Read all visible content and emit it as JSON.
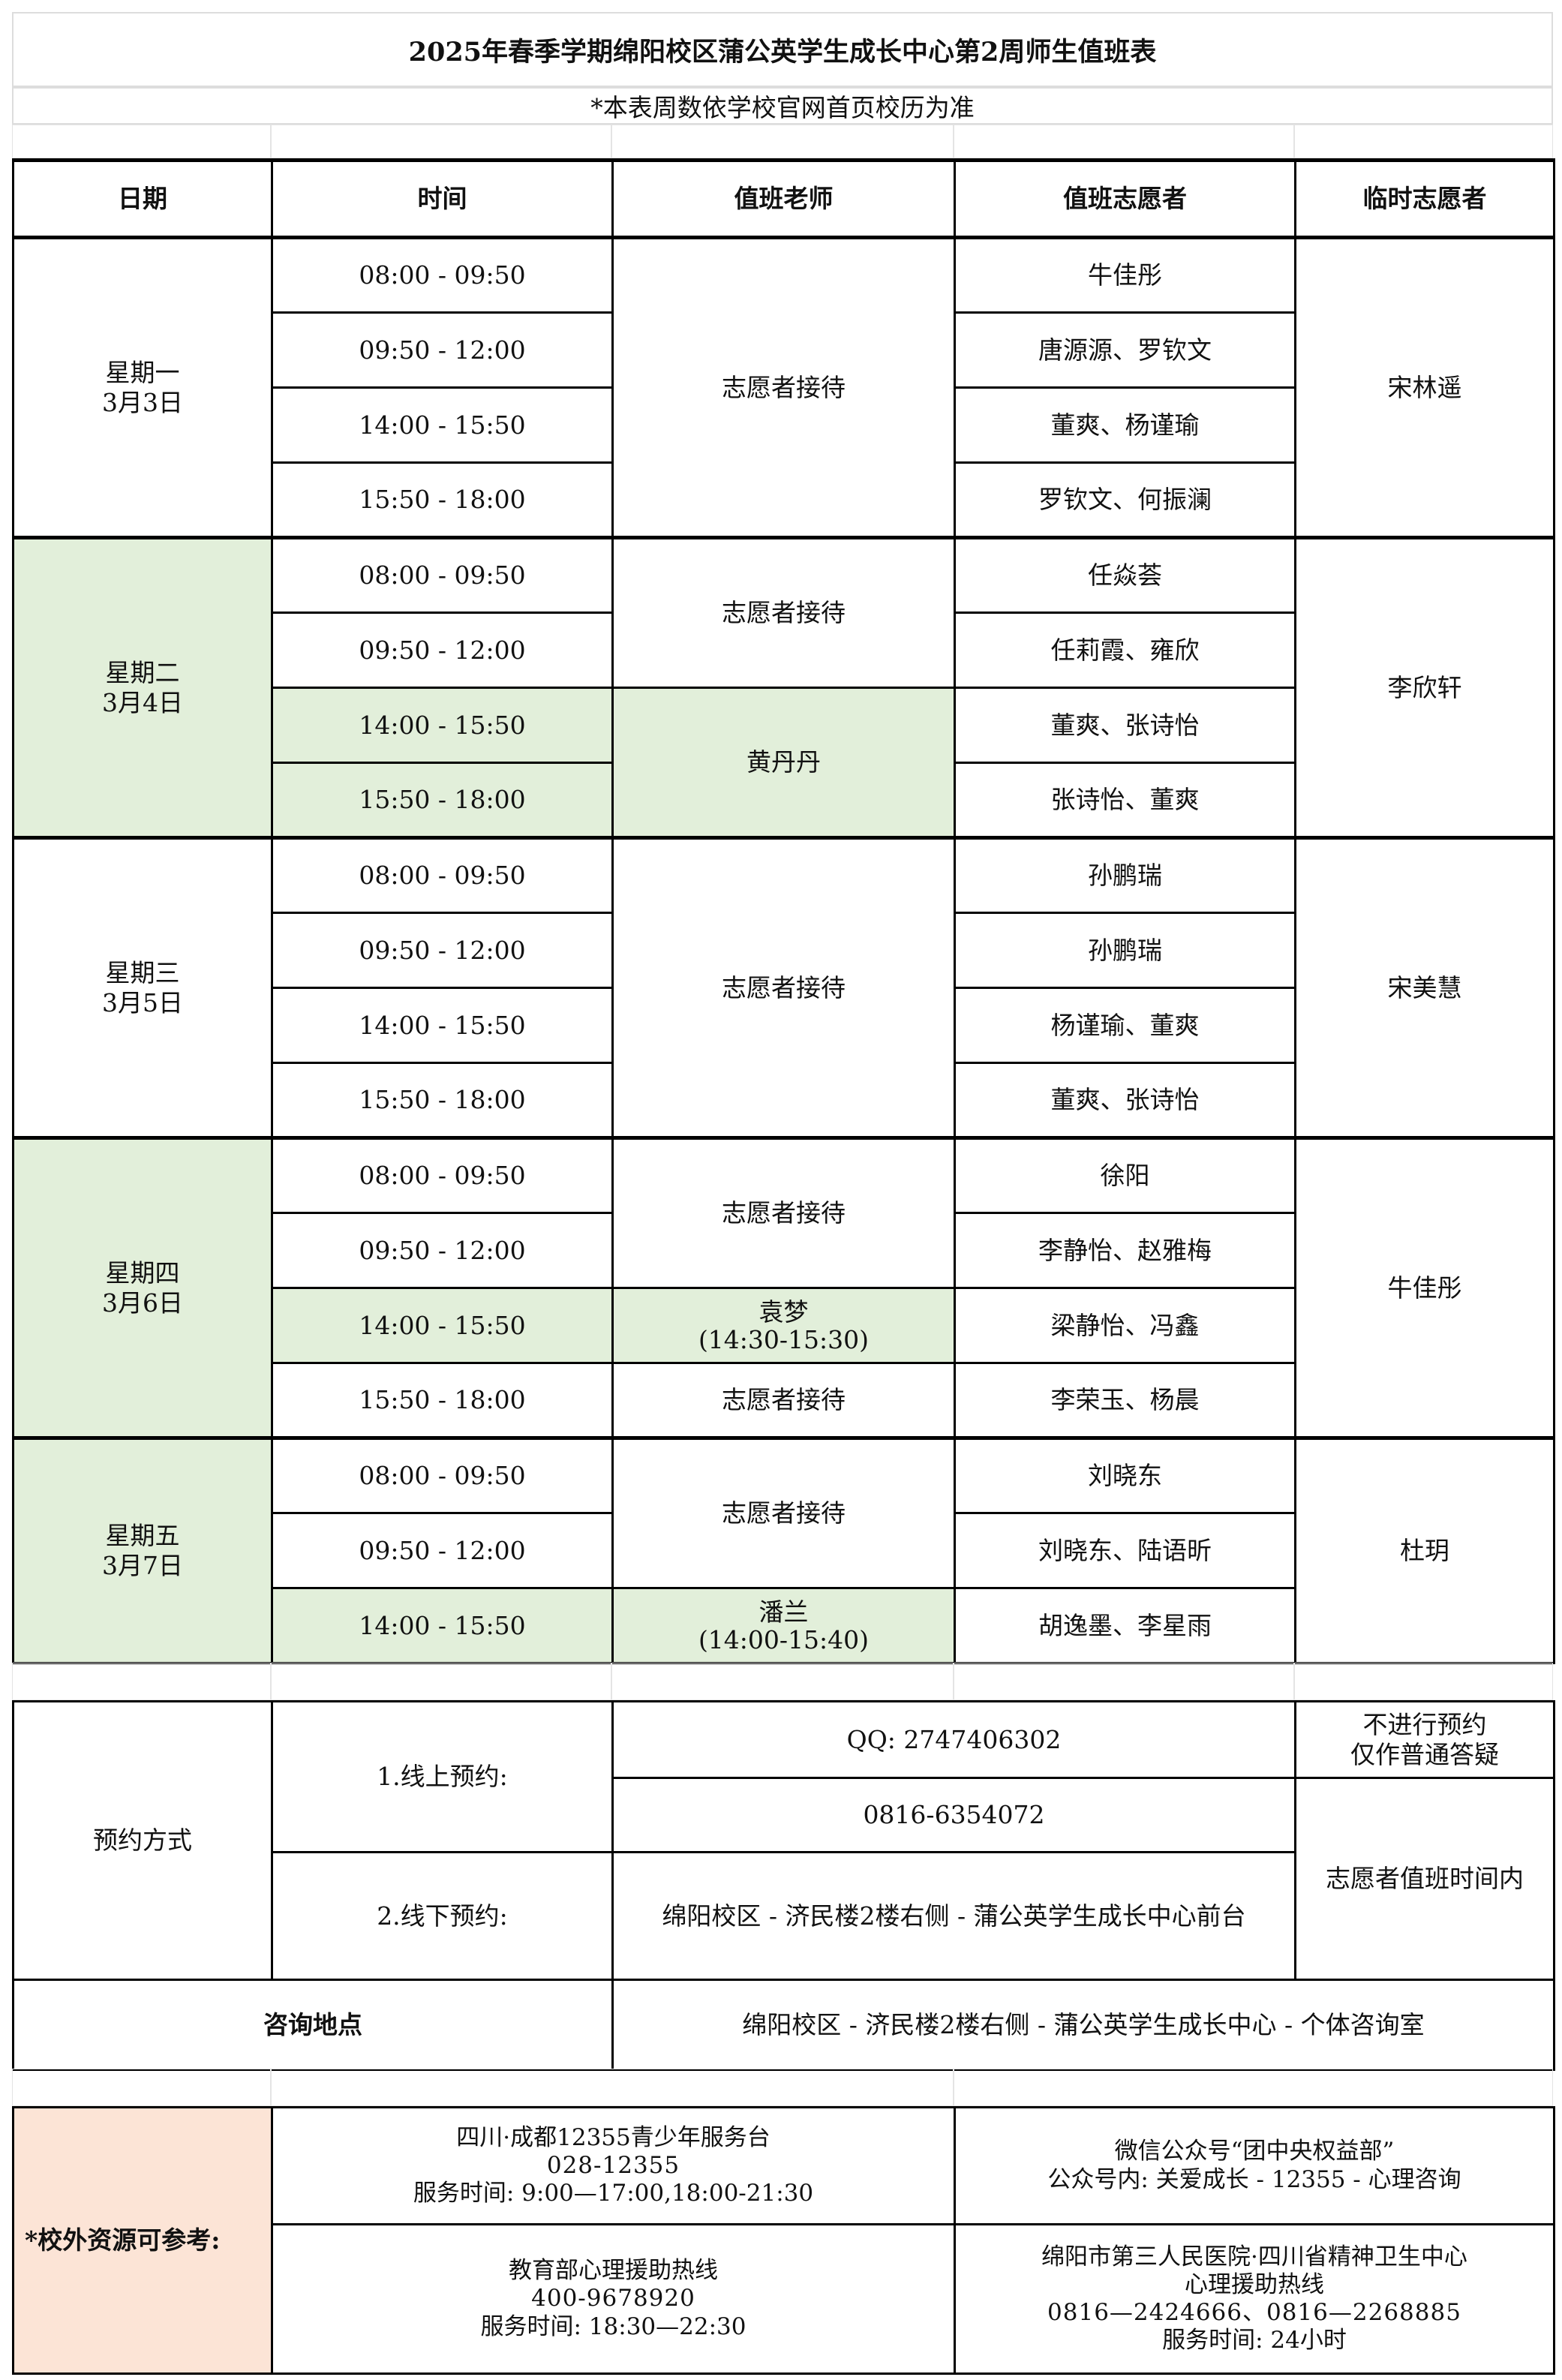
{
  "title": "2025年春季学期绵阳校区蒲公英学生成长中心第2周师生值班表",
  "subtitle": "*本表周数依学校官网首页校历为准",
  "colors": {
    "highlight_green": "#e2efda",
    "resource_peach": "#fce4d6"
  },
  "headers": [
    "日期",
    "时间",
    "值班老师",
    "值班志愿者",
    "临时志愿者"
  ],
  "days": [
    {
      "day": "星期一",
      "date": "3月3日",
      "highlight": false,
      "temp": "宋林遥",
      "slots": [
        {
          "time": "08:00 - 09:50",
          "volunteers": "牛佳彤",
          "highlight": false
        },
        {
          "time": "09:50 - 12:00",
          "volunteers": "唐源源、罗钦文",
          "highlight": false
        },
        {
          "time": "14:00 - 15:50",
          "volunteers": "董爽、杨谨瑜",
          "highlight": false
        },
        {
          "time": "15:50 - 18:00",
          "volunteers": "罗钦文、何振澜",
          "highlight": false
        }
      ],
      "teachers": [
        {
          "name": "志愿者接待",
          "note": "",
          "span": 4,
          "highlight": false
        }
      ]
    },
    {
      "day": "星期二",
      "date": "3月4日",
      "highlight": true,
      "temp": "李欣轩",
      "slots": [
        {
          "time": "08:00 - 09:50",
          "volunteers": "任焱荟",
          "highlight": false
        },
        {
          "time": "09:50 - 12:00",
          "volunteers": "任莉霞、雍欣",
          "highlight": false
        },
        {
          "time": "14:00 - 15:50",
          "volunteers": "董爽、张诗怡",
          "highlight": true
        },
        {
          "time": "15:50 - 18:00",
          "volunteers": "张诗怡、董爽",
          "highlight": true
        }
      ],
      "teachers": [
        {
          "name": "志愿者接待",
          "note": "",
          "span": 2,
          "highlight": false
        },
        {
          "name": "黄丹丹",
          "note": "",
          "span": 2,
          "highlight": true
        }
      ]
    },
    {
      "day": "星期三",
      "date": "3月5日",
      "highlight": false,
      "temp": "宋美慧",
      "slots": [
        {
          "time": "08:00 - 09:50",
          "volunteers": "孙鹏瑞",
          "highlight": false
        },
        {
          "time": "09:50 - 12:00",
          "volunteers": "孙鹏瑞",
          "highlight": false
        },
        {
          "time": "14:00 - 15:50",
          "volunteers": "杨谨瑜、董爽",
          "highlight": false
        },
        {
          "time": "15:50 - 18:00",
          "volunteers": "董爽、张诗怡",
          "highlight": false
        }
      ],
      "teachers": [
        {
          "name": "志愿者接待",
          "note": "",
          "span": 4,
          "highlight": false
        }
      ]
    },
    {
      "day": "星期四",
      "date": "3月6日",
      "highlight": true,
      "temp": "牛佳彤",
      "slots": [
        {
          "time": "08:00 - 09:50",
          "volunteers": "徐阳",
          "highlight": false
        },
        {
          "time": "09:50 - 12:00",
          "volunteers": "李静怡、赵雅梅",
          "highlight": false
        },
        {
          "time": "14:00 - 15:50",
          "volunteers": "梁静怡、冯鑫",
          "highlight": true
        },
        {
          "time": "15:50 - 18:00",
          "volunteers": "李荣玉、杨晨",
          "highlight": false
        }
      ],
      "teachers": [
        {
          "name": "志愿者接待",
          "note": "",
          "span": 2,
          "highlight": false
        },
        {
          "name": "袁梦",
          "note": "(14:30-15:30)",
          "span": 1,
          "highlight": true
        },
        {
          "name": "志愿者接待",
          "note": "",
          "span": 1,
          "highlight": false
        }
      ]
    },
    {
      "day": "星期五",
      "date": "3月7日",
      "highlight": true,
      "temp": "杜玥",
      "slots": [
        {
          "time": "08:00 - 09:50",
          "volunteers": "刘晓东",
          "highlight": false
        },
        {
          "time": "09:50 - 12:00",
          "volunteers": "刘晓东、陆语昕",
          "highlight": false
        },
        {
          "time": "14:00 - 15:50",
          "volunteers": "胡逸墨、李星雨",
          "highlight": true
        }
      ],
      "teachers": [
        {
          "name": "志愿者接待",
          "note": "",
          "span": 2,
          "highlight": false
        },
        {
          "name": "潘兰",
          "note": "(14:00-15:40)",
          "span": 1,
          "highlight": true
        }
      ]
    }
  ],
  "appointment": {
    "label": "预约方式",
    "online_label": "1.线上预约:",
    "qq": "QQ: 2747406302",
    "phone": "0816-6354072",
    "qq_note_line1": "不进行预约",
    "qq_note_line2": "仅作普通答疑",
    "offline_label": "2.线下预约:",
    "offline_address": "绵阳校区 - 济民楼2楼右侧 - 蒲公英学生成长中心前台",
    "time_note": "志愿者值班时间内",
    "consult_label": "咨询地点",
    "consult_location": "绵阳校区 - 济民楼2楼右侧 - 蒲公英学生成长中心 - 个体咨询室"
  },
  "resources": {
    "label": "*校外资源可参考:",
    "items": [
      {
        "lines": [
          "四川·成都12355青少年服务台",
          "028-12355",
          "服务时间: 9:00—17:00,18:00-21:30"
        ]
      },
      {
        "lines": [
          "微信公众号“团中央权益部”",
          "公众号内: 关爱成长 - 12355 - 心理咨询"
        ]
      },
      {
        "lines": [
          "教育部心理援助热线",
          "400-9678920",
          "服务时间: 18:30—22:30"
        ]
      },
      {
        "lines": [
          "绵阳市第三人民医院·四川省精神卫生中心",
          "心理援助热线",
          "0816—2424666、0816—2268885",
          "服务时间: 24小时"
        ]
      }
    ]
  }
}
